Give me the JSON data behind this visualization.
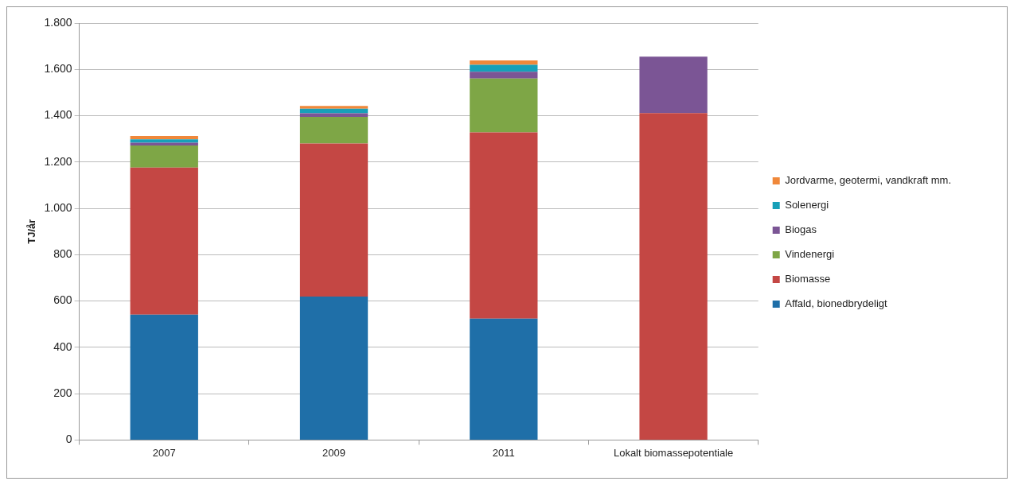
{
  "chart_data": {
    "type": "bar",
    "stacked": true,
    "ylabel": "TJ/år",
    "categories": [
      "2007",
      "2009",
      "2011",
      "Lokalt biomassepotentiale"
    ],
    "series": [
      {
        "name": "Affald, bionedbrydeligt",
        "color": "#1f6fa8",
        "values": [
          541,
          619,
          524,
          null
        ]
      },
      {
        "name": "Biomasse",
        "color": "#c44744",
        "values": [
          635,
          661,
          804,
          1411
        ]
      },
      {
        "name": "Vindenergi",
        "color": "#7ea646",
        "values": [
          95,
          115,
          233,
          null
        ]
      },
      {
        "name": "Biogas",
        "color": "#7b5595",
        "values": [
          12,
          15,
          29,
          244
        ]
      },
      {
        "name": "Solenergi",
        "color": "#17a0b8",
        "values": [
          15,
          20,
          30,
          null
        ]
      },
      {
        "name": "Jordvarme, geotermi, vandkraft mm.",
        "color": "#f0883a",
        "values": [
          15,
          12,
          19,
          null
        ]
      }
    ],
    "ylim": [
      0,
      1800
    ],
    "yticks": [
      0,
      200,
      400,
      600,
      800,
      {
        "value": 1000,
        "label": "1.000"
      },
      {
        "value": 1200,
        "label": "1.200"
      },
      {
        "value": 1400,
        "label": "1.400"
      },
      {
        "value": 1600,
        "label": "1.600"
      },
      {
        "value": 1800,
        "label": "1.800"
      }
    ],
    "grid": "y",
    "legend": "right"
  }
}
